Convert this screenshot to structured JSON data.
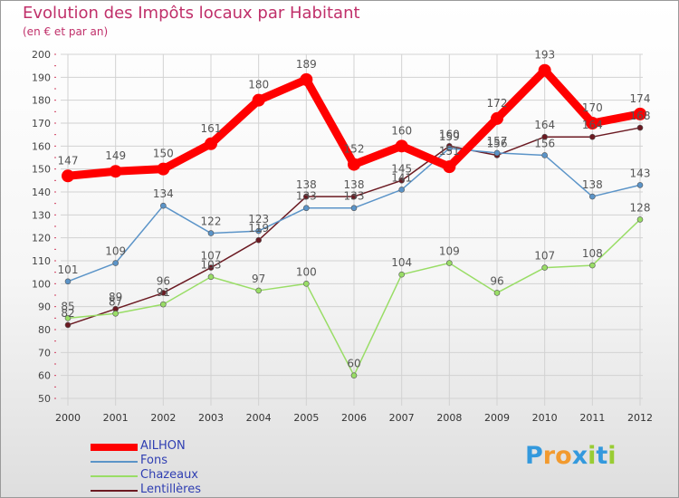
{
  "chart_data": {
    "type": "line",
    "title": "Evolution des Impôts locaux par Habitant",
    "subtitle": "(en € et par an)",
    "categories": [
      "2000",
      "2001",
      "2002",
      "2003",
      "2004",
      "2005",
      "2006",
      "2007",
      "2008",
      "2009",
      "2010",
      "2011",
      "2012"
    ],
    "ylim": [
      50,
      200
    ],
    "yticks": [
      50,
      60,
      70,
      80,
      90,
      100,
      110,
      120,
      130,
      140,
      150,
      160,
      170,
      180,
      190,
      200
    ],
    "grid": true,
    "legend_position": "bottom-left",
    "series": [
      {
        "name": "AILHON",
        "color": "#ff0000",
        "values": [
          147,
          149,
          150,
          161,
          180,
          189,
          152,
          160,
          151,
          172,
          193,
          170,
          174
        ]
      },
      {
        "name": "Fons",
        "color": "#5b94c8",
        "values": [
          101,
          109,
          134,
          122,
          123,
          133,
          133,
          141,
          159,
          157,
          156,
          138,
          143
        ]
      },
      {
        "name": "Chazeaux",
        "color": "#99dd66",
        "values": [
          85,
          87,
          91,
          103,
          97,
          100,
          60,
          104,
          109,
          96,
          107,
          108,
          128
        ]
      },
      {
        "name": "Lentillères",
        "color": "#6b1a22",
        "values": [
          82,
          89,
          96,
          107,
          119,
          138,
          138,
          145,
          160,
          156,
          164,
          164,
          168
        ]
      }
    ]
  },
  "logo": {
    "letters": [
      "P",
      "r",
      "o",
      "x",
      "i",
      "t",
      "i"
    ],
    "colors": [
      "#3399dd",
      "#f29a2e",
      "#f29a2e",
      "#3399dd",
      "#99cc33",
      "#3399dd",
      "#99cc33"
    ]
  }
}
